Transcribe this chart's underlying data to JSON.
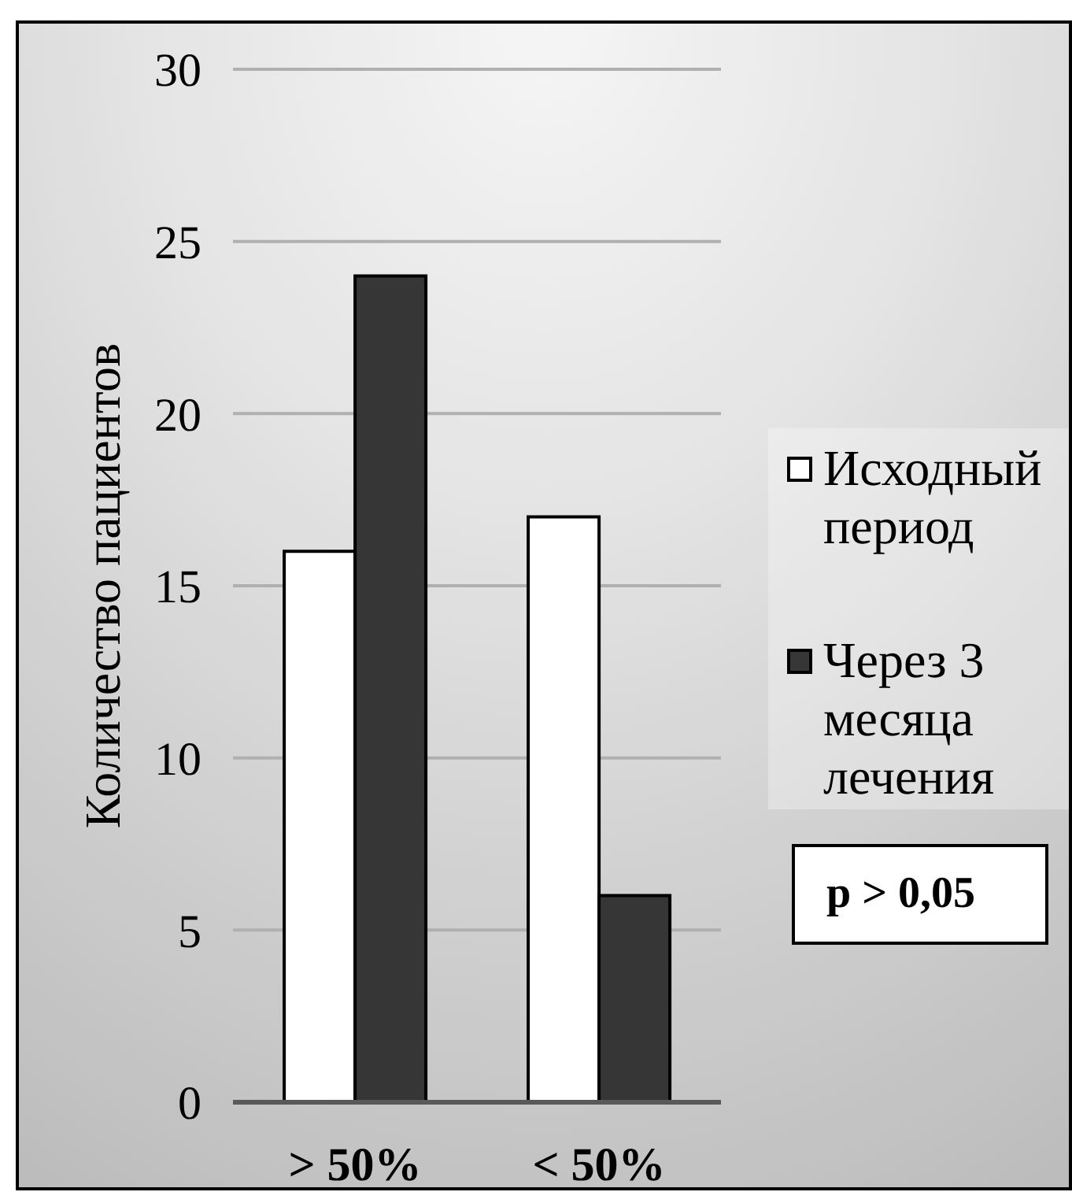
{
  "chart_data": {
    "type": "bar",
    "ylabel": "Количество пациентов",
    "categories": [
      "> 50%",
      "< 50%"
    ],
    "series": [
      {
        "name": "Исходный период",
        "color": "#ffffff",
        "values": [
          16,
          17
        ]
      },
      {
        "name": "Через 3 месяца лечения",
        "color": "#363636",
        "values": [
          24,
          6
        ]
      }
    ],
    "ylim": [
      0,
      30
    ],
    "yticks": [
      0,
      5,
      10,
      15,
      20,
      25,
      30
    ],
    "grid": "y",
    "legend": "right",
    "annotations": [
      "p > 0,05"
    ]
  }
}
